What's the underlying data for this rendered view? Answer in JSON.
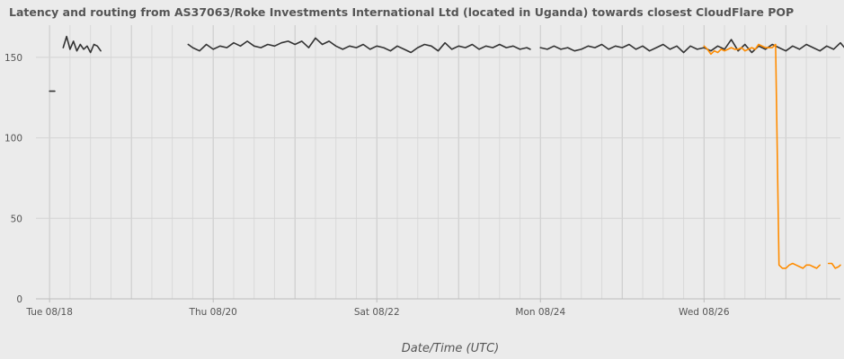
{
  "chart_data": {
    "type": "line",
    "title": "Latency and routing from AS37063/Roke Investments International Ltd (located in Uganda) towards closest CloudFlare POP",
    "xlabel": "Date/Time (UTC)",
    "ylabel": "",
    "xlim": [
      "2020-08-17T20:00",
      "2020-08-27T16:00"
    ],
    "ylim": [
      0,
      170
    ],
    "x_ticks": [
      {
        "x": "2020-08-18T00:00",
        "label": "Tue 08/18"
      },
      {
        "x": "2020-08-20T00:00",
        "label": "Thu 08/20"
      },
      {
        "x": "2020-08-22T00:00",
        "label": "Sat 08/22"
      },
      {
        "x": "2020-08-24T00:00",
        "label": "Mon 08/24"
      },
      {
        "x": "2020-08-26T00:00",
        "label": "Wed 08/26"
      }
    ],
    "y_ticks": [
      0,
      50,
      100,
      150
    ],
    "grid": true,
    "legend": "none",
    "series": [
      {
        "color": "#333333",
        "segments": [
          {
            "x": [
              "2020-08-18T00:00",
              "2020-08-18T01:30"
            ],
            "y": [
              129,
              129
            ]
          },
          {
            "x": [
              "2020-08-18T04:00",
              "2020-08-18T05:00",
              "2020-08-18T06:00",
              "2020-08-18T07:00",
              "2020-08-18T08:00",
              "2020-08-18T09:00",
              "2020-08-18T10:00",
              "2020-08-18T11:00",
              "2020-08-18T12:00",
              "2020-08-18T13:00",
              "2020-08-18T14:00",
              "2020-08-18T15:00"
            ],
            "y": [
              156,
              163,
              155,
              160,
              154,
              158,
              155,
              157,
              153,
              158,
              157,
              154
            ]
          },
          {
            "x": [
              "2020-08-19T16:40",
              "2020-08-19T18:00",
              "2020-08-19T20:00",
              "2020-08-19T22:00",
              "2020-08-20T00:00",
              "2020-08-20T02:00",
              "2020-08-20T04:00",
              "2020-08-20T06:00",
              "2020-08-20T08:00",
              "2020-08-20T10:00",
              "2020-08-20T12:00",
              "2020-08-20T14:00",
              "2020-08-20T16:00",
              "2020-08-20T18:00",
              "2020-08-20T20:00",
              "2020-08-20T22:00",
              "2020-08-21T00:00",
              "2020-08-21T02:00",
              "2020-08-21T04:00",
              "2020-08-21T06:00",
              "2020-08-21T08:00",
              "2020-08-21T10:00",
              "2020-08-21T12:00",
              "2020-08-21T14:00",
              "2020-08-21T16:00",
              "2020-08-21T18:00",
              "2020-08-21T20:00",
              "2020-08-21T22:00",
              "2020-08-22T00:00",
              "2020-08-22T02:00",
              "2020-08-22T04:00",
              "2020-08-22T06:00",
              "2020-08-22T08:00",
              "2020-08-22T10:00",
              "2020-08-22T12:00",
              "2020-08-22T14:00",
              "2020-08-22T16:00",
              "2020-08-22T18:00",
              "2020-08-22T20:00",
              "2020-08-22T22:00",
              "2020-08-23T00:00",
              "2020-08-23T02:00",
              "2020-08-23T04:00",
              "2020-08-23T06:00",
              "2020-08-23T08:00",
              "2020-08-23T10:00",
              "2020-08-23T12:00",
              "2020-08-23T14:00",
              "2020-08-23T16:00",
              "2020-08-23T18:00",
              "2020-08-23T20:00",
              "2020-08-23T21:00"
            ],
            "y": [
              158,
              156,
              154,
              158,
              155,
              157,
              156,
              159,
              157,
              160,
              157,
              156,
              158,
              157,
              159,
              160,
              158,
              160,
              156,
              162,
              158,
              160,
              157,
              155,
              157,
              156,
              158,
              155,
              157,
              156,
              154,
              157,
              155,
              153,
              156,
              158,
              157,
              154,
              159,
              155,
              157,
              156,
              158,
              155,
              157,
              156,
              158,
              156,
              157,
              155,
              156,
              155
            ]
          },
          {
            "x": [
              "2020-08-24T00:00",
              "2020-08-24T02:00",
              "2020-08-24T04:00",
              "2020-08-24T06:00",
              "2020-08-24T08:00",
              "2020-08-24T10:00",
              "2020-08-24T12:00",
              "2020-08-24T14:00",
              "2020-08-24T16:00",
              "2020-08-24T18:00",
              "2020-08-24T20:00",
              "2020-08-24T22:00",
              "2020-08-25T00:00",
              "2020-08-25T02:00",
              "2020-08-25T04:00",
              "2020-08-25T06:00",
              "2020-08-25T08:00",
              "2020-08-25T10:00",
              "2020-08-25T12:00",
              "2020-08-25T14:00",
              "2020-08-25T16:00",
              "2020-08-25T18:00",
              "2020-08-25T20:00",
              "2020-08-25T22:00",
              "2020-08-26T00:00",
              "2020-08-26T02:00",
              "2020-08-26T04:00",
              "2020-08-26T06:00",
              "2020-08-26T08:00",
              "2020-08-26T10:00",
              "2020-08-26T12:00",
              "2020-08-26T14:00",
              "2020-08-26T16:00",
              "2020-08-26T18:00",
              "2020-08-26T20:00",
              "2020-08-26T22:00",
              "2020-08-27T00:00",
              "2020-08-27T02:00",
              "2020-08-27T04:00",
              "2020-08-27T06:00",
              "2020-08-27T08:00",
              "2020-08-27T10:00",
              "2020-08-27T12:00",
              "2020-08-27T14:00",
              "2020-08-27T16:00",
              "2020-08-27T18:00",
              "2020-08-27T20:00",
              "2020-08-27T22:00"
            ],
            "y": [
              156,
              155,
              157,
              155,
              156,
              154,
              155,
              157,
              156,
              158,
              155,
              157,
              156,
              158,
              155,
              157,
              154,
              156,
              158,
              155,
              157,
              153,
              157,
              155,
              156,
              154,
              157,
              155,
              161,
              154,
              158,
              153,
              157,
              155,
              158,
              156,
              154,
              157,
              155,
              158,
              156,
              154,
              157,
              155,
              159,
              154,
              157,
              155
            ]
          }
        ]
      },
      {
        "color": "#ff8c00",
        "segments": [
          {
            "x": [
              "2020-08-26T00:00",
              "2020-08-26T01:00",
              "2020-08-26T02:00",
              "2020-08-26T03:00",
              "2020-08-26T04:00",
              "2020-08-26T05:00",
              "2020-08-26T06:00",
              "2020-08-26T07:00",
              "2020-08-26T08:00",
              "2020-08-26T09:00",
              "2020-08-26T10:00",
              "2020-08-26T11:00",
              "2020-08-26T12:00",
              "2020-08-26T13:00",
              "2020-08-26T14:00",
              "2020-08-26T15:00",
              "2020-08-26T16:00",
              "2020-08-26T17:00",
              "2020-08-26T18:00",
              "2020-08-26T19:00",
              "2020-08-26T20:00",
              "2020-08-26T21:00",
              "2020-08-26T22:00",
              "2020-08-26T23:00",
              "2020-08-27T00:00",
              "2020-08-27T01:00",
              "2020-08-27T02:00",
              "2020-08-27T03:00",
              "2020-08-27T04:00",
              "2020-08-27T05:00",
              "2020-08-27T06:00",
              "2020-08-27T07:00",
              "2020-08-27T08:00",
              "2020-08-27T09:00",
              "2020-08-27T10:00"
            ],
            "y": [
              157,
              155,
              152,
              154,
              153,
              155,
              154,
              155,
              156,
              155,
              155,
              156,
              154,
              155,
              156,
              155,
              158,
              157,
              156,
              156,
              156,
              158,
              21,
              19,
              19,
              21,
              22,
              21,
              20,
              19,
              21,
              21,
              20,
              19,
              21
            ]
          },
          {
            "x": [
              "2020-08-27T12:30",
              "2020-08-27T13:30",
              "2020-08-27T14:30",
              "2020-08-27T15:30",
              "2020-08-27T16:00"
            ],
            "y": [
              22,
              22,
              19,
              20,
              21
            ]
          }
        ]
      }
    ]
  }
}
